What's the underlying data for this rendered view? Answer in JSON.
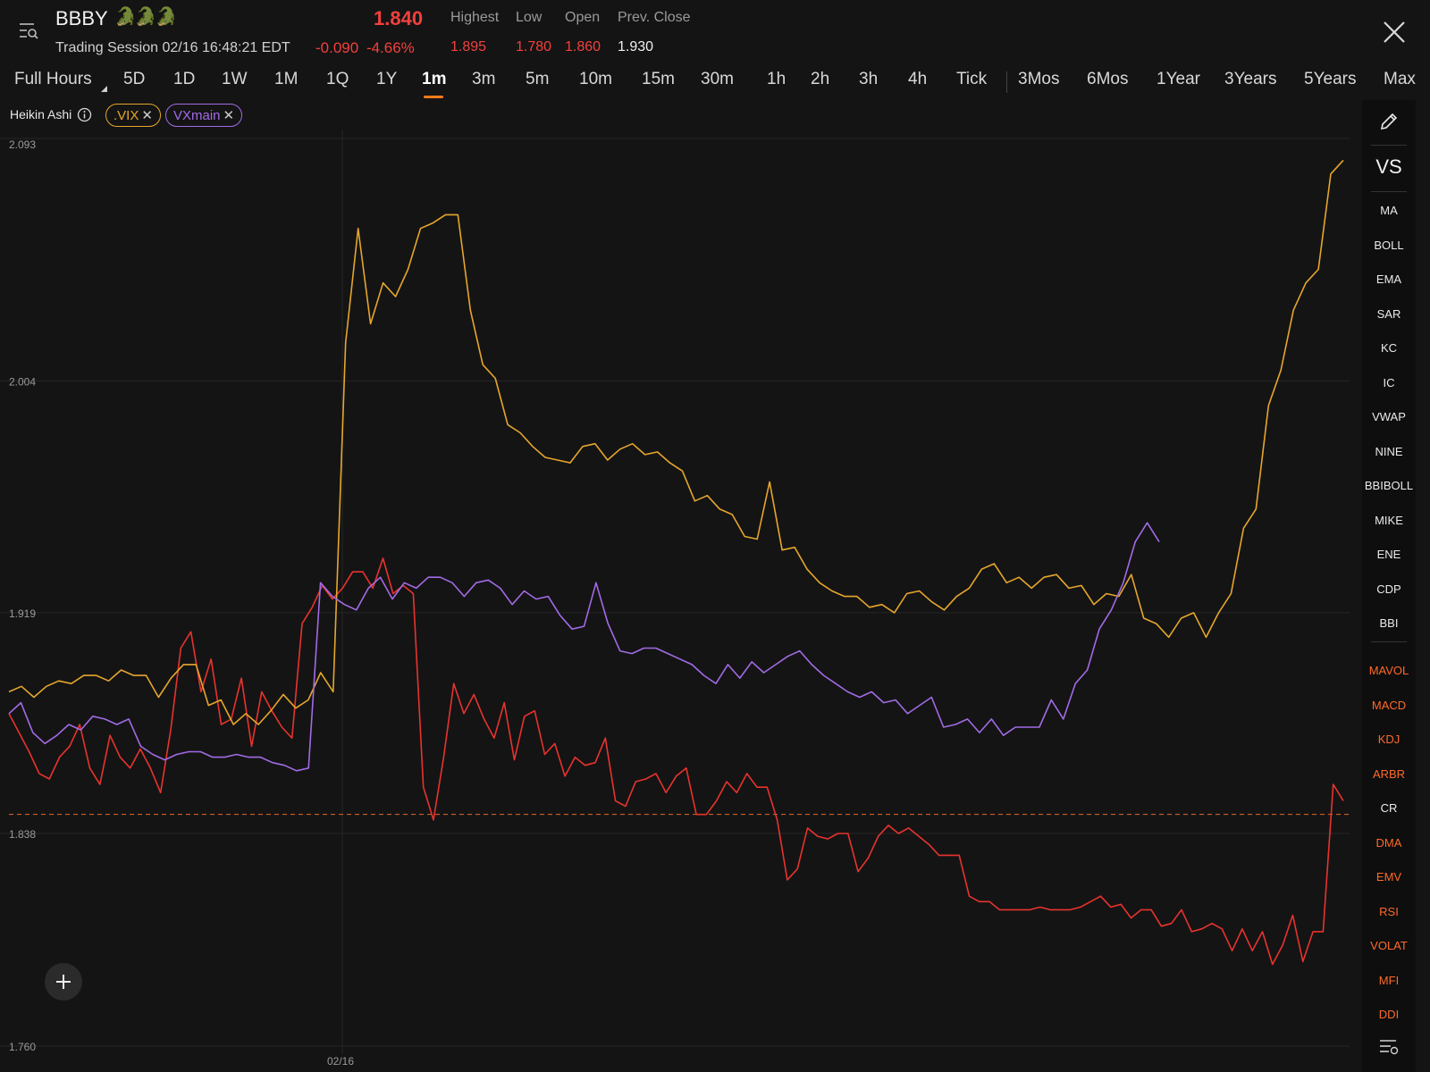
{
  "header": {
    "ticker": "BBBY",
    "ticker_icons": "🐊🐊🐊",
    "session": "Trading Session 02/16 16:48:21 EDT",
    "price": "1.840",
    "change": "-0.090",
    "change_pct": "-4.66%",
    "stats": [
      {
        "label": "Highest",
        "value": "1.895",
        "color": "#f2403c"
      },
      {
        "label": "Low",
        "value": "1.780",
        "color": "#f2403c"
      },
      {
        "label": "Open",
        "value": "1.860",
        "color": "#f2403c"
      },
      {
        "label": "Prev. Close",
        "value": "1.930",
        "color": "#f0f0f0"
      }
    ]
  },
  "timeframes": [
    "Full Hours",
    "5D",
    "1D",
    "1W",
    "1M",
    "1Q",
    "1Y",
    "1m",
    "3m",
    "5m",
    "10m",
    "15m",
    "30m",
    "1h",
    "2h",
    "3h",
    "4h",
    "Tick",
    "3Mos",
    "6Mos",
    "1Year",
    "3Years",
    "5Years",
    "Max"
  ],
  "active_timeframe": "1m",
  "chart_type": "Heikin Ashi",
  "comparisons": [
    {
      "label": ".VIX",
      "color": "#e6a62c"
    },
    {
      "label": "VXmain",
      "color": "#a26be6"
    }
  ],
  "sidebar": {
    "vs": "VS",
    "main_indicators": [
      "MA",
      "BOLL",
      "EMA",
      "SAR",
      "KC",
      "IC",
      "VWAP",
      "NINE",
      "BBIBOLL",
      "MIKE",
      "ENE",
      "CDP",
      "BBI"
    ],
    "sub_indicators": [
      {
        "label": "MAVOL",
        "active": true
      },
      {
        "label": "MACD",
        "active": true
      },
      {
        "label": "KDJ",
        "active": true
      },
      {
        "label": "ARBR",
        "active": true
      },
      {
        "label": "CR",
        "active": false
      },
      {
        "label": "DMA",
        "active": true
      },
      {
        "label": "EMV",
        "active": true
      },
      {
        "label": "RSI",
        "active": true
      },
      {
        "label": "VOLAT",
        "active": true
      },
      {
        "label": "MFI",
        "active": true
      },
      {
        "label": "DDI",
        "active": true
      }
    ]
  },
  "chart_data": {
    "type": "line",
    "y_ticks": [
      "2.093",
      "2.004",
      "1.919",
      "1.838",
      "1.760"
    ],
    "ylim": [
      1.76,
      2.093
    ],
    "x_tick_label": "02/16",
    "reference_line": 1.845,
    "grid": true,
    "series": [
      {
        "name": "BBBY",
        "color": "#e8332e",
        "values": [
          1.882,
          1.875,
          1.868,
          1.86,
          1.858,
          1.866,
          1.87,
          1.878,
          1.862,
          1.856,
          1.874,
          1.866,
          1.862,
          1.869,
          1.862,
          1.853,
          1.876,
          1.906,
          1.912,
          1.89,
          1.902,
          1.878,
          1.88,
          1.895,
          1.87,
          1.89,
          1.883,
          1.877,
          1.873,
          1.915,
          1.921,
          1.929,
          1.924,
          1.928,
          1.934,
          1.934,
          1.928,
          1.939,
          1.926,
          1.929,
          1.926,
          1.855,
          1.843,
          1.866,
          1.893,
          1.882,
          1.889,
          1.88,
          1.873,
          1.886,
          1.865,
          1.881,
          1.883,
          1.867,
          1.871,
          1.859,
          1.866,
          1.863,
          1.864,
          1.873,
          1.85,
          1.848,
          1.857,
          1.858,
          1.86,
          1.853,
          1.859,
          1.862,
          1.845,
          1.845,
          1.85,
          1.857,
          1.853,
          1.86,
          1.855,
          1.855,
          1.843,
          1.821,
          1.825,
          1.84,
          1.837,
          1.836,
          1.838,
          1.838,
          1.824,
          1.829,
          1.837,
          1.841,
          1.838,
          1.84,
          1.837,
          1.834,
          1.83,
          1.83,
          1.83,
          1.815,
          1.813,
          1.813,
          1.81,
          1.81,
          1.81,
          1.81,
          1.811,
          1.81,
          1.81,
          1.81,
          1.811,
          1.813,
          1.815,
          1.811,
          1.812,
          1.807,
          1.81,
          1.81,
          1.804,
          1.805,
          1.81,
          1.802,
          1.803,
          1.805,
          1.803,
          1.795,
          1.803,
          1.795,
          1.802,
          1.79,
          1.797,
          1.808,
          1.791,
          1.802,
          1.802,
          1.856,
          1.85
        ]
      },
      {
        "name": ".VIX",
        "color": "#e6a62c",
        "values": [
          1.89,
          1.892,
          1.888,
          1.892,
          1.894,
          1.893,
          1.896,
          1.896,
          1.894,
          1.898,
          1.896,
          1.896,
          1.888,
          1.895,
          1.9,
          1.9,
          1.885,
          1.887,
          1.878,
          1.882,
          1.878,
          1.883,
          1.889,
          1.884,
          1.887,
          1.897,
          1.89,
          2.018,
          2.06,
          2.025,
          2.04,
          2.035,
          2.045,
          2.06,
          2.062,
          2.065,
          2.065,
          2.03,
          2.01,
          2.005,
          1.988,
          1.985,
          1.98,
          1.976,
          1.975,
          1.974,
          1.98,
          1.981,
          1.975,
          1.979,
          1.981,
          1.977,
          1.978,
          1.974,
          1.971,
          1.96,
          1.962,
          1.957,
          1.955,
          1.947,
          1.946,
          1.967,
          1.942,
          1.943,
          1.935,
          1.93,
          1.927,
          1.925,
          1.925,
          1.921,
          1.922,
          1.919,
          1.926,
          1.927,
          1.923,
          1.92,
          1.925,
          1.928,
          1.935,
          1.937,
          1.93,
          1.932,
          1.928,
          1.932,
          1.933,
          1.928,
          1.929,
          1.922,
          1.926,
          1.925,
          1.933,
          1.917,
          1.915,
          1.91,
          1.917,
          1.919,
          1.91,
          1.919,
          1.926,
          1.95,
          1.957,
          1.995,
          2.008,
          2.03,
          2.04,
          2.045,
          2.08,
          2.085
        ]
      },
      {
        "name": "VXmain",
        "color": "#a26be6",
        "values": [
          1.882,
          1.886,
          1.875,
          1.871,
          1.874,
          1.878,
          1.876,
          1.881,
          1.88,
          1.878,
          1.88,
          1.87,
          1.867,
          1.865,
          1.867,
          1.868,
          1.868,
          1.866,
          1.866,
          1.867,
          1.866,
          1.866,
          1.864,
          1.863,
          1.861,
          1.862,
          1.93,
          1.925,
          1.922,
          1.92,
          1.928,
          1.932,
          1.924,
          1.93,
          1.928,
          1.932,
          1.932,
          1.93,
          1.925,
          1.93,
          1.931,
          1.928,
          1.922,
          1.927,
          1.924,
          1.925,
          1.918,
          1.913,
          1.914,
          1.93,
          1.915,
          1.905,
          1.904,
          1.906,
          1.906,
          1.904,
          1.902,
          1.9,
          1.896,
          1.893,
          1.9,
          1.895,
          1.901,
          1.897,
          1.9,
          1.903,
          1.905,
          1.9,
          1.896,
          1.893,
          1.89,
          1.888,
          1.89,
          1.886,
          1.887,
          1.882,
          1.885,
          1.888,
          1.877,
          1.878,
          1.88,
          1.875,
          1.88,
          1.874,
          1.877,
          1.877,
          1.877,
          1.887,
          1.88,
          1.893,
          1.898,
          1.913,
          1.92,
          1.93,
          1.945,
          1.952,
          1.945
        ]
      }
    ]
  }
}
